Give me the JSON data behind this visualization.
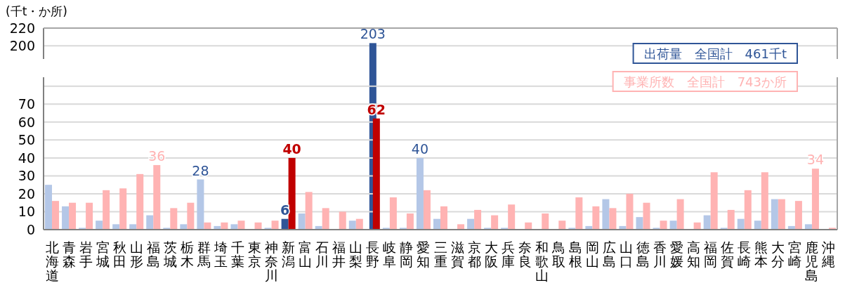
{
  "chart_data": [
    {
      "type": "bar",
      "ylabel": "(千t・か所)",
      "series": [
        {
          "color": "#2f5597",
          "values": [
            null,
            null,
            null,
            null,
            null,
            null,
            null,
            null,
            null,
            null,
            null,
            null,
            null,
            null,
            null,
            null,
            null,
            null,
            null,
            203,
            null,
            null,
            null,
            null,
            null,
            null,
            null,
            null,
            null,
            null,
            null,
            null,
            null,
            null,
            null,
            null,
            null,
            null,
            null,
            null,
            null,
            null,
            null,
            null,
            null,
            null,
            null
          ]
        }
      ],
      "data_labels": true,
      "ylim": [
        185,
        220
      ],
      "yticks": [
        200,
        220
      ],
      "grid": "y",
      "tick_labels": "y"
    },
    {
      "type": "bar",
      "categories": [
        "北海道",
        "青森",
        "岩手",
        "宮城",
        "秋田",
        "山形",
        "福島",
        "茨城",
        "栃木",
        "群馬",
        "埼玉",
        "千葉",
        "東京",
        "神奈川",
        "新潟",
        "富山",
        "石川",
        "福井",
        "山梨",
        "長野",
        "岐阜",
        "静岡",
        "愛知",
        "三重",
        "滋賀",
        "京都",
        "大阪",
        "兵庫",
        "奈良",
        "和歌山",
        "鳥取",
        "島根",
        "岡山",
        "広島",
        "山口",
        "徳島",
        "香川",
        "愛媛",
        "高知",
        "福岡",
        "佐賀",
        "長崎",
        "熊本",
        "大分",
        "宮崎",
        "鹿児島",
        "沖縄"
      ],
      "series": [
        {
          "name": "出荷量　全国計　461千t",
          "color": "#2f5597",
          "colors": [
            "#b4c7e7",
            "#b4c7e7",
            "#b4c7e7",
            "#b4c7e7",
            "#b4c7e7",
            "#b4c7e7",
            "#b4c7e7",
            "#b4c7e7",
            "#b4c7e7",
            "#b4c7e7",
            "#b4c7e7",
            "#b4c7e7",
            "#b4c7e7",
            "#b4c7e7",
            "#2f5597",
            "#b4c7e7",
            "#b4c7e7",
            "#b4c7e7",
            "#b4c7e7",
            "#2f5597",
            "#b4c7e7",
            "#b4c7e7",
            "#b4c7e7",
            "#b4c7e7",
            "#b4c7e7",
            "#b4c7e7",
            "#b4c7e7",
            "#b4c7e7",
            "#b4c7e7",
            "#b4c7e7",
            "#b4c7e7",
            "#b4c7e7",
            "#b4c7e7",
            "#b4c7e7",
            "#b4c7e7",
            "#b4c7e7",
            "#b4c7e7",
            "#b4c7e7",
            "#b4c7e7",
            "#b4c7e7",
            "#b4c7e7",
            "#b4c7e7",
            "#b4c7e7",
            "#b4c7e7",
            "#b4c7e7",
            "#b4c7e7",
            "#b4c7e7"
          ],
          "values": [
            25,
            13,
            1,
            5,
            3,
            3,
            8,
            1,
            3,
            28,
            2,
            3,
            0,
            1,
            6,
            9,
            2,
            0,
            5,
            null,
            1,
            1,
            40,
            6,
            0,
            6,
            1,
            1,
            0,
            0,
            0,
            1,
            2,
            17,
            2,
            7,
            1,
            5,
            0,
            8,
            1,
            6,
            5,
            17,
            2,
            3,
            0
          ],
          "value_labels": [
            null,
            null,
            null,
            null,
            null,
            null,
            null,
            null,
            null,
            "28",
            null,
            null,
            null,
            null,
            "6",
            null,
            null,
            null,
            null,
            null,
            null,
            null,
            "40",
            null,
            null,
            null,
            null,
            null,
            null,
            null,
            null,
            null,
            null,
            null,
            null,
            null,
            null,
            null,
            null,
            null,
            null,
            null,
            null,
            null,
            null,
            null,
            null
          ]
        },
        {
          "name": "事業所数　全国計　743か所",
          "color": "#ffb3b3",
          "colors": [
            "#ffb3b3",
            "#ffb3b3",
            "#ffb3b3",
            "#ffb3b3",
            "#ffb3b3",
            "#ffb3b3",
            "#ffb3b3",
            "#ffb3b3",
            "#ffb3b3",
            "#ffb3b3",
            "#ffb3b3",
            "#ffb3b3",
            "#ffb3b3",
            "#ffb3b3",
            "#c00000",
            "#ffb3b3",
            "#ffb3b3",
            "#ffb3b3",
            "#ffb3b3",
            "#c00000",
            "#ffb3b3",
            "#ffb3b3",
            "#ffb3b3",
            "#ffb3b3",
            "#ffb3b3",
            "#ffb3b3",
            "#ffb3b3",
            "#ffb3b3",
            "#ffb3b3",
            "#ffb3b3",
            "#ffb3b3",
            "#ffb3b3",
            "#ffb3b3",
            "#ffb3b3",
            "#ffb3b3",
            "#ffb3b3",
            "#ffb3b3",
            "#ffb3b3",
            "#ffb3b3",
            "#ffb3b3",
            "#ffb3b3",
            "#ffb3b3",
            "#ffb3b3",
            "#ffb3b3",
            "#ffb3b3",
            "#ffb3b3",
            "#ffb3b3"
          ],
          "values": [
            16,
            15,
            15,
            22,
            23,
            31,
            36,
            12,
            15,
            4,
            4,
            5,
            4,
            5,
            40,
            21,
            12,
            10,
            6,
            62,
            18,
            9,
            22,
            13,
            3,
            11,
            8,
            14,
            4,
            9,
            5,
            18,
            13,
            12,
            20,
            15,
            5,
            17,
            4,
            32,
            11,
            22,
            32,
            17,
            16,
            34,
            1
          ],
          "value_labels": [
            null,
            null,
            null,
            null,
            null,
            null,
            "36",
            null,
            null,
            null,
            null,
            null,
            null,
            null,
            "40",
            null,
            null,
            null,
            null,
            "62",
            null,
            null,
            null,
            null,
            null,
            null,
            null,
            null,
            null,
            null,
            null,
            null,
            null,
            null,
            null,
            null,
            null,
            null,
            null,
            null,
            null,
            null,
            null,
            null,
            null,
            "34",
            null
          ]
        }
      ],
      "ylim": [
        0,
        85
      ],
      "yticks": [
        0,
        10,
        20,
        30,
        40,
        50,
        60,
        70,
        {
          "value": 80,
          "label": null
        }
      ],
      "grid": "y",
      "legend": "top right"
    }
  ]
}
